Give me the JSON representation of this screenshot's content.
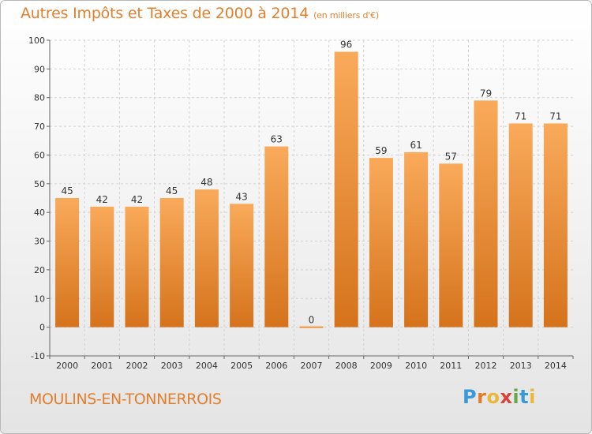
{
  "title": "Autres Impôts et Taxes de 2000 à 2014",
  "unit": "(en milliers d'€)",
  "commune": "MOULINS-EN-TONNERROIS",
  "logo": {
    "letters": [
      "P",
      "r",
      "o",
      "x",
      "i",
      "t",
      "i"
    ],
    "colors": [
      "#3a9ad9",
      "#e27d2c",
      "#e8b83a",
      "#d9423a",
      "#66a84a",
      "#3a9ad9",
      "#e8b83a"
    ]
  },
  "chart_data": {
    "type": "bar",
    "categories": [
      "2000",
      "2001",
      "2002",
      "2003",
      "2004",
      "2005",
      "2006",
      "2007",
      "2008",
      "2009",
      "2010",
      "2011",
      "2012",
      "2013",
      "2014"
    ],
    "values": [
      45,
      42,
      42,
      45,
      48,
      43,
      63,
      0,
      96,
      59,
      61,
      57,
      79,
      71,
      71
    ],
    "ylim": [
      -10,
      100
    ],
    "yticks": [
      -10,
      0,
      10,
      20,
      30,
      40,
      50,
      60,
      70,
      80,
      90,
      100
    ],
    "grid": true,
    "bar_color": "#f0923a"
  }
}
